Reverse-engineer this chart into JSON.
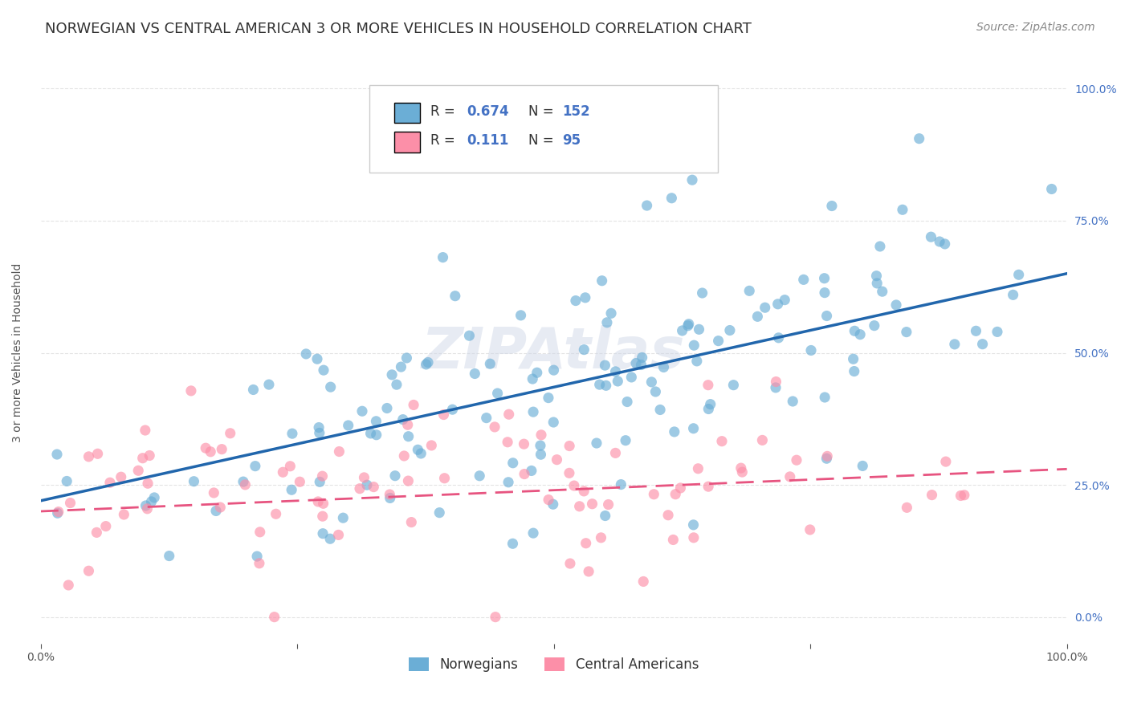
{
  "title": "NORWEGIAN VS CENTRAL AMERICAN 3 OR MORE VEHICLES IN HOUSEHOLD CORRELATION CHART",
  "source": "Source: ZipAtlas.com",
  "ylabel": "3 or more Vehicles in Household",
  "xlabel_ticks": [
    "0.0%",
    "100.0%"
  ],
  "ylabel_ticks": [
    "0.0%",
    "25.0%",
    "50.0%",
    "75.0%",
    "100.0%"
  ],
  "norwegian_R": 0.674,
  "norwegian_N": 152,
  "central_R": 0.111,
  "central_N": 95,
  "norwegian_color": "#6baed6",
  "central_color": "#fc8fa8",
  "norwegian_line_color": "#2166ac",
  "central_line_color": "#e75480",
  "watermark": "ZIPAtlas",
  "legend_label_1": "Norwegians",
  "legend_label_2": "Central Americans",
  "xlim": [
    0.0,
    1.0
  ],
  "ylim": [
    0.0,
    1.05
  ],
  "background_color": "#ffffff",
  "grid_color": "#dddddd",
  "title_color": "#333333",
  "title_fontsize": 13,
  "source_fontsize": 10,
  "axis_label_fontsize": 10,
  "tick_fontsize": 10,
  "legend_fontsize": 12
}
